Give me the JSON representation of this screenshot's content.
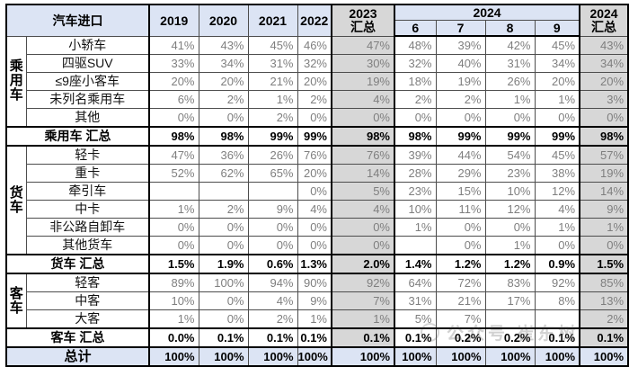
{
  "header": {
    "title": "汽车进口",
    "years": [
      "2019",
      "2020",
      "2021",
      "2022"
    ],
    "summary2023": {
      "line1": "2023",
      "line2": "汇总"
    },
    "group2024": "2024",
    "months": [
      "6",
      "7",
      "8",
      "9"
    ],
    "summary2024": {
      "line1": "2024",
      "line2": "汇总"
    }
  },
  "columns": [
    "2019",
    "2020",
    "2021",
    "2022",
    "2023汇总",
    "2024-6",
    "2024-7",
    "2024-8",
    "2024-9",
    "2024汇总"
  ],
  "groups": [
    {
      "name": "乘用车",
      "rows": [
        {
          "label": "小轿车",
          "values": [
            "41%",
            "43%",
            "45%",
            "46%",
            "47%",
            "48%",
            "39%",
            "42%",
            "45%",
            "43%"
          ]
        },
        {
          "label": "四驱SUV",
          "values": [
            "33%",
            "34%",
            "31%",
            "32%",
            "30%",
            "32%",
            "40%",
            "31%",
            "34%",
            "34%"
          ]
        },
        {
          "label": "≤9座小客车",
          "values": [
            "20%",
            "20%",
            "21%",
            "20%",
            "19%",
            "18%",
            "19%",
            "26%",
            "20%",
            "20%"
          ]
        },
        {
          "label": "未列名乘用车",
          "values": [
            "6%",
            "2%",
            "1%",
            "2%",
            "4%",
            "2%",
            "2%",
            "1%",
            "1%",
            "3%"
          ]
        },
        {
          "label": "其他",
          "values": [
            "0%",
            "0%",
            "2%",
            "0%",
            "0%",
            "0%",
            "0%",
            "0%",
            "0%",
            "0%"
          ]
        }
      ],
      "subtotal": {
        "label": "乘用车 汇总",
        "values": [
          "98%",
          "98%",
          "99%",
          "99%",
          "98%",
          "98%",
          "99%",
          "99%",
          "99%",
          "98%"
        ]
      }
    },
    {
      "name": "货车",
      "rows": [
        {
          "label": "轻卡",
          "values": [
            "47%",
            "36%",
            "26%",
            "76%",
            "76%",
            "39%",
            "44%",
            "54%",
            "45%",
            "57%"
          ]
        },
        {
          "label": "重卡",
          "values": [
            "52%",
            "62%",
            "65%",
            "20%",
            "14%",
            "28%",
            "29%",
            "23%",
            "38%",
            "19%"
          ]
        },
        {
          "label": "牵引车",
          "values": [
            "",
            "",
            "",
            "0%",
            "5%",
            "23%",
            "15%",
            "10%",
            "12%",
            "14%"
          ]
        },
        {
          "label": "中卡",
          "values": [
            "1%",
            "2%",
            "9%",
            "4%",
            "4%",
            "10%",
            "11%",
            "12%",
            "4%",
            "9%"
          ]
        },
        {
          "label": "非公路自卸车",
          "values": [
            "0%",
            "0%",
            "0%",
            "0%",
            "0%",
            "1%",
            "0%",
            "0%",
            "1%",
            "1%"
          ]
        },
        {
          "label": "其他货车",
          "values": [
            "0%",
            "0%",
            "0%",
            "0%",
            "0%",
            "",
            "0%",
            "1%",
            "0%",
            "0%"
          ]
        }
      ],
      "subtotal": {
        "label": "货车 汇总",
        "values": [
          "1.5%",
          "1.9%",
          "0.6%",
          "1.3%",
          "2.0%",
          "1.4%",
          "1.2%",
          "1.2%",
          "0.9%",
          "1.5%"
        ]
      }
    },
    {
      "name": "客车",
      "rows": [
        {
          "label": "轻客",
          "values": [
            "89%",
            "100%",
            "94%",
            "90%",
            "92%",
            "64%",
            "72%",
            "83%",
            "92%",
            "85%"
          ]
        },
        {
          "label": "中客",
          "values": [
            "10%",
            "0%",
            "4%",
            "9%",
            "7%",
            "31%",
            "21%",
            "17%",
            "8%",
            "13%"
          ]
        },
        {
          "label": "大客",
          "values": [
            "1%",
            "0%",
            "2%",
            "1%",
            "1%",
            "5%",
            "7%",
            "",
            "",
            "2%"
          ]
        }
      ],
      "subtotal": {
        "label": "客车 汇总",
        "values": [
          "0.0%",
          "0.1%",
          "0.1%",
          "0.1%",
          "0.1%",
          "0.1%",
          "0.2%",
          "0.2%",
          "0.1%",
          "0.1%"
        ]
      }
    }
  ],
  "total": {
    "label": "总计",
    "values": [
      "100%",
      "100%",
      "100%",
      "100%",
      "100%",
      "100%",
      "100%",
      "100%",
      "100%",
      "100%"
    ]
  },
  "watermark": {
    "text": "公众号 崔东树"
  },
  "colors": {
    "header_bg": "#dce4f4",
    "summary_col_bg": "#d7d7d7",
    "total_row_bg": "#dce4f4",
    "value_text": "#7f7f7f",
    "border": "#4d4d4d"
  }
}
